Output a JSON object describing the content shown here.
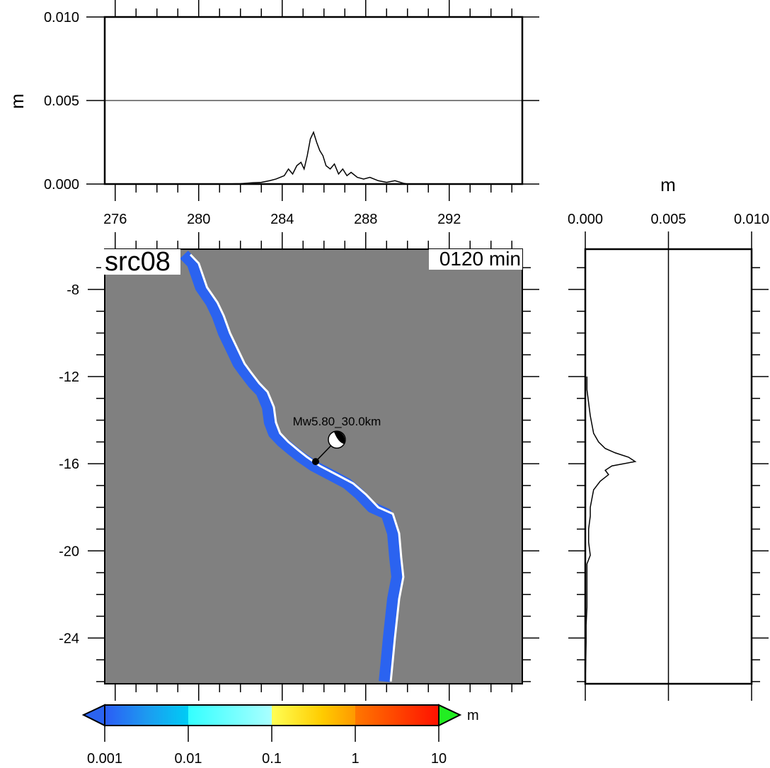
{
  "map": {
    "title": "src08",
    "time_label": "0120 min",
    "x_ticks": [
      276,
      280,
      284,
      288,
      292
    ],
    "y_ticks": [
      -8,
      -12,
      -16,
      -20,
      -24
    ],
    "land_color": "#808080",
    "coast_color": "#ffffff",
    "wave_color": "#2b63f0",
    "event": {
      "label": "Mw5.80_30.0km",
      "lon": 285.6,
      "lat": -15.9
    }
  },
  "top_panel": {
    "unit": "m",
    "y_ticks": [
      "0.000",
      "0.005",
      "0.010"
    ]
  },
  "side_panel": {
    "unit": "m",
    "x_ticks": [
      "0.000",
      "0.005",
      "0.010"
    ]
  },
  "colorbar": {
    "unit": "m",
    "labels": [
      "0.001",
      "0.01",
      "0.1",
      "1",
      "10"
    ],
    "under_color": "#2b63f0",
    "over_color": "#22ee22"
  },
  "chart_data": [
    {
      "type": "line",
      "xlabel": "",
      "ylabel": "m",
      "xlim": [
        275.5,
        295.5
      ],
      "ylim": [
        0,
        0.01
      ],
      "x": [
        281.2,
        282.0,
        282.6,
        283.0,
        283.4,
        283.7,
        283.9,
        284.1,
        284.3,
        284.5,
        284.7,
        284.9,
        285.05,
        285.2,
        285.35,
        285.5,
        285.65,
        285.8,
        285.95,
        286.1,
        286.3,
        286.5,
        286.7,
        286.9,
        287.1,
        287.3,
        287.6,
        287.9,
        288.2,
        288.6,
        289.0,
        289.4,
        289.8,
        290.0
      ],
      "y": [
        0.0,
        2e-05,
        8e-05,
        0.0001,
        0.0002,
        0.0003,
        0.0004,
        0.0005,
        0.0009,
        0.0006,
        0.0011,
        0.0013,
        0.0009,
        0.0017,
        0.0027,
        0.0031,
        0.0025,
        0.002,
        0.0017,
        0.0011,
        0.0009,
        0.0012,
        0.0006,
        0.0009,
        0.0005,
        0.0007,
        0.0004,
        0.0003,
        0.0004,
        0.0002,
        0.0001,
        0.0002,
        5e-05,
        0.0
      ]
    },
    {
      "type": "line",
      "xlabel": "m",
      "ylabel": "",
      "xlim": [
        0,
        0.01
      ],
      "ylim": [
        -26,
        -6
      ],
      "y": [
        -12.0,
        -12.6,
        -13.2,
        -13.8,
        -14.2,
        -14.6,
        -15.0,
        -15.3,
        -15.5,
        -15.7,
        -15.9,
        -16.1,
        -16.3,
        -16.5,
        -16.8,
        -17.2,
        -17.6,
        -18.0,
        -18.4,
        -19.0,
        -19.6,
        -20.2,
        -20.6,
        -21.2,
        -21.8,
        -22.6,
        -23.4,
        -24.2,
        -25.0,
        -26.0
      ],
      "x": [
        0.0001,
        0.0001,
        0.0002,
        0.0003,
        0.0004,
        0.0005,
        0.0008,
        0.0012,
        0.0018,
        0.0026,
        0.003,
        0.0016,
        0.0012,
        0.0014,
        0.0009,
        0.0005,
        0.0004,
        0.0003,
        0.0003,
        0.0002,
        0.0002,
        0.0003,
        0.0001,
        0.0001,
        0.0001,
        0.0001,
        5e-05,
        5e-05,
        3e-05,
        0.0
      ]
    }
  ]
}
